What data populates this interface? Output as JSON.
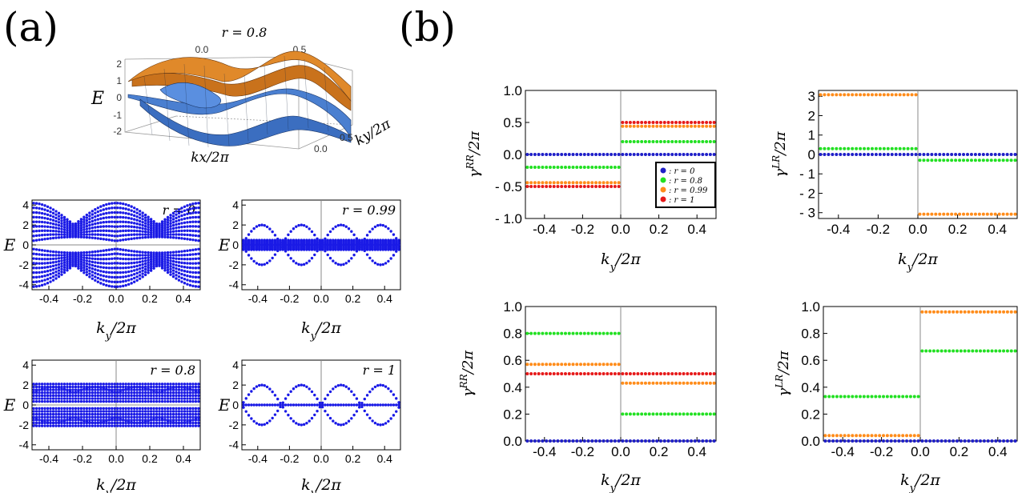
{
  "panel_labels": {
    "a": "(a)",
    "b": "(b)"
  },
  "surface3d": {
    "title": "r = 0.8",
    "zlabel": "E",
    "xlabel": "kx/2π",
    "ylabel": "ky/2π",
    "top_ticks": [
      "0.0",
      "0.5"
    ],
    "z_ticks": [
      "2",
      "1",
      "0",
      "-1",
      "-2"
    ],
    "y_ticks": [
      "0.0",
      "0.5"
    ],
    "colors": {
      "upper": "#e08a2a",
      "lower": "#4a7fd0"
    }
  },
  "colors": {
    "r0": "#1f1fc8",
    "r08": "#22e022",
    "r099": "#ff8c1a",
    "r1": "#e61919",
    "band": "#1a1ae6"
  },
  "chart_data": [
    {
      "id": "bands_r0",
      "type": "scatter",
      "annotation": "r = 0",
      "xlabel": "ky/2π",
      "ylabel": "E",
      "xlim": [
        -0.5,
        0.5
      ],
      "ylim": [
        -4.5,
        4.5
      ],
      "xticks": [
        "-0.4",
        "-0.2",
        "0.0",
        "0.2",
        "0.4"
      ],
      "yticks": [
        "4",
        "2",
        "0",
        "-2",
        "-4"
      ],
      "r": 0
    },
    {
      "id": "bands_r099",
      "type": "scatter",
      "annotation": "r = 0.99",
      "xlabel": "ky/2π",
      "ylabel": "E",
      "xlim": [
        -0.5,
        0.5
      ],
      "ylim": [
        -4.5,
        4.5
      ],
      "xticks": [
        "-0.4",
        "-0.2",
        "0.0",
        "0.2",
        "0.4"
      ],
      "yticks": [
        "4",
        "2",
        "0",
        "-2",
        "-4"
      ],
      "r": 0.99
    },
    {
      "id": "bands_r08",
      "type": "scatter",
      "annotation": "r = 0.8",
      "xlabel": "ky/2π",
      "ylabel": "E",
      "xlim": [
        -0.5,
        0.5
      ],
      "ylim": [
        -4.5,
        4.5
      ],
      "xticks": [
        "-0.4",
        "-0.2",
        "0.0",
        "0.2",
        "0.4"
      ],
      "yticks": [
        "4",
        "2",
        "0",
        "-2",
        "-4"
      ],
      "r": 0.8
    },
    {
      "id": "bands_r1",
      "type": "scatter",
      "annotation": "r = 1",
      "xlabel": "ky/2π",
      "ylabel": "E",
      "xlim": [
        -0.5,
        0.5
      ],
      "ylim": [
        -4.5,
        4.5
      ],
      "xticks": [
        "-0.4",
        "-0.2",
        "0.0",
        "0.2",
        "0.4"
      ],
      "yticks": [
        "4",
        "2",
        "0",
        "-2",
        "-4"
      ],
      "r": 1
    },
    {
      "id": "gamma_RR_top",
      "type": "scatter",
      "xlabel": "ky/2π",
      "ylabel": "γRR/2π",
      "xlim": [
        -0.5,
        0.5
      ],
      "ylim": [
        -1.0,
        1.0
      ],
      "xticks": [
        "-0.4",
        "-0.2",
        "0.0",
        "0.2",
        "0.4"
      ],
      "yticks": [
        "1.0",
        "0.5",
        "0.0",
        "- 0.5",
        "- 1.0"
      ],
      "legend": {
        "position": "bottom-right",
        "entries": [
          ": r = 0",
          ": r = 0.8",
          ": r = 0.99",
          ": r = 1"
        ]
      },
      "series": [
        {
          "name": "r = 0",
          "color_key": "r0",
          "left": 0.0,
          "right": 0.0
        },
        {
          "name": "r = 0.8",
          "color_key": "r08",
          "left": -0.2,
          "right": 0.2
        },
        {
          "name": "r = 0.99",
          "color_key": "r099",
          "left": -0.44,
          "right": 0.44
        },
        {
          "name": "r = 1",
          "color_key": "r1",
          "left": -0.5,
          "right": 0.5
        }
      ]
    },
    {
      "id": "gamma_LR_top",
      "type": "scatter",
      "xlabel": "ky/2π",
      "ylabel": "γLR/2π",
      "xlim": [
        -0.5,
        0.5
      ],
      "ylim": [
        -3.3,
        3.3
      ],
      "xticks": [
        "-0.4",
        "-0.2",
        "0.0",
        "0.2",
        "0.4"
      ],
      "yticks": [
        "3",
        "2",
        "1",
        "0",
        "- 1",
        "- 2",
        "- 3"
      ],
      "series": [
        {
          "name": "r = 0",
          "color_key": "r0",
          "left": 0.0,
          "right": 0.0
        },
        {
          "name": "r = 0.8",
          "color_key": "r08",
          "left": 0.3,
          "right": -0.3
        },
        {
          "name": "r = 0.99",
          "color_key": "r099",
          "left": 3.08,
          "right": -3.08
        }
      ]
    },
    {
      "id": "gamma_RR_bottom",
      "type": "scatter",
      "xlabel": "ky/2π",
      "ylabel": "γRR/2π",
      "xlim": [
        -0.5,
        0.5
      ],
      "ylim": [
        0.0,
        1.0
      ],
      "xticks": [
        "-0.4",
        "-0.2",
        "0.0",
        "0.2",
        "0.4"
      ],
      "yticks": [
        "1.0",
        "0.8",
        "0.6",
        "0.4",
        "0.2",
        "0.0"
      ],
      "series": [
        {
          "name": "r = 0",
          "color_key": "r0",
          "left": 0.0,
          "right": 0.0
        },
        {
          "name": "r = 0.8",
          "color_key": "r08",
          "left": 0.8,
          "right": 0.2
        },
        {
          "name": "r = 0.99",
          "color_key": "r099",
          "left": 0.57,
          "right": 0.43
        },
        {
          "name": "r = 1",
          "color_key": "r1",
          "left": 0.5,
          "right": 0.5
        }
      ]
    },
    {
      "id": "gamma_LR_bottom",
      "type": "scatter",
      "xlabel": "ky/2π",
      "ylabel": "γLR/2π",
      "xlim": [
        -0.5,
        0.5
      ],
      "ylim": [
        0.0,
        1.0
      ],
      "xticks": [
        "-0.4",
        "-0.2",
        "0.0",
        "0.2",
        "0.4"
      ],
      "yticks": [
        "1.0",
        "0.8",
        "0.6",
        "0.4",
        "0.2",
        "0.0"
      ],
      "series": [
        {
          "name": "r = 0",
          "color_key": "r0",
          "left": 0.0,
          "right": 0.0
        },
        {
          "name": "r = 0.8",
          "color_key": "r08",
          "left": 0.33,
          "right": 0.67
        },
        {
          "name": "r = 0.99",
          "color_key": "r099",
          "left": 0.04,
          "right": 0.96
        }
      ]
    }
  ]
}
